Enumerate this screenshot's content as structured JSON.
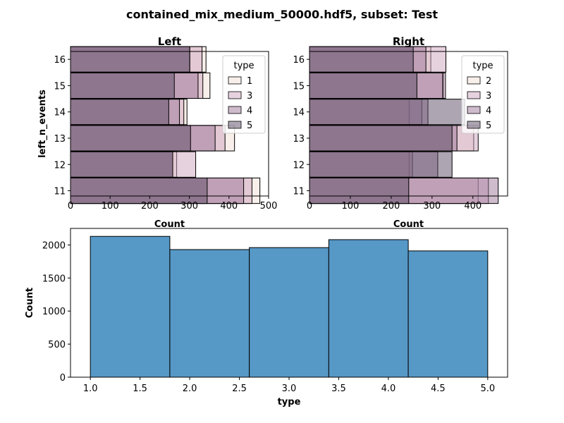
{
  "figure": {
    "suptitle": "contained_mix_medium_50000.hdf5, subset: Test"
  },
  "chart_data": [
    {
      "type": "bar",
      "orientation": "horizontal",
      "title": "Left",
      "xlabel": "Count",
      "ylabel": "left_n_events",
      "xlim": [
        0,
        500
      ],
      "ylim": [
        10.8,
        16.3
      ],
      "xticks": [
        0,
        100,
        200,
        300,
        400,
        500
      ],
      "yticks": [
        11,
        12,
        13,
        14,
        15,
        16
      ],
      "legend": {
        "title": "type",
        "position": "top-right"
      },
      "categories": [
        11,
        12,
        13,
        14,
        15,
        16
      ],
      "series": [
        {
          "name": "1",
          "color": "#f1dfd5",
          "values": [
            478,
            268,
            414,
            294,
            352,
            342
          ]
        },
        {
          "name": "3",
          "color": "#cda4bd",
          "values": [
            458,
            316,
            390,
            286,
            334,
            332
          ]
        },
        {
          "name": "4",
          "color": "#9e7799",
          "values": [
            437,
            258,
            365,
            275,
            322,
            301
          ]
        },
        {
          "name": "5",
          "color": "#5b4b66",
          "values": [
            345,
            258,
            303,
            248,
            262,
            301
          ]
        }
      ]
    },
    {
      "type": "bar",
      "orientation": "horizontal",
      "title": "Right",
      "xlabel": "Count",
      "ylabel": "",
      "xlim": [
        0,
        485
      ],
      "ylim": [
        10.8,
        16.3
      ],
      "xticks": [
        0,
        100,
        200,
        300,
        400
      ],
      "yticks": [
        11,
        12,
        13,
        14,
        15,
        16
      ],
      "legend": {
        "title": "type",
        "position": "top-right"
      },
      "categories": [
        11,
        12,
        13,
        14,
        15,
        16
      ],
      "series": [
        {
          "name": "2",
          "color": "#f1dfd5",
          "values": [
            413,
            244,
            402,
            244,
            328,
            297
          ]
        },
        {
          "name": "3",
          "color": "#cda4bd",
          "values": [
            438,
            252,
            413,
            275,
            333,
            334
          ]
        },
        {
          "name": "4",
          "color": "#9e7799",
          "values": [
            462,
            314,
            361,
            290,
            326,
            285
          ]
        },
        {
          "name": "5",
          "color": "#5b4b66",
          "values": [
            243,
            349,
            349,
            380,
            263,
            254
          ]
        }
      ]
    },
    {
      "type": "bar",
      "title": "",
      "xlabel": "type",
      "ylabel": "Count",
      "xlim": [
        0.8,
        5.2
      ],
      "ylim": [
        0,
        2250
      ],
      "xticks": [
        "1.0",
        "1.5",
        "2.0",
        "2.5",
        "3.0",
        "3.5",
        "4.0",
        "4.5",
        "5.0"
      ],
      "yticks": [
        0,
        500,
        1000,
        1500,
        2000
      ],
      "color": "#5698c6",
      "bins": [
        {
          "x0": 1.0,
          "x1": 1.8,
          "value": 2130
        },
        {
          "x0": 1.8,
          "x1": 2.6,
          "value": 1930
        },
        {
          "x0": 2.6,
          "x1": 3.4,
          "value": 1960
        },
        {
          "x0": 3.4,
          "x1": 4.2,
          "value": 2080
        },
        {
          "x0": 4.2,
          "x1": 5.0,
          "value": 1910
        }
      ]
    }
  ]
}
